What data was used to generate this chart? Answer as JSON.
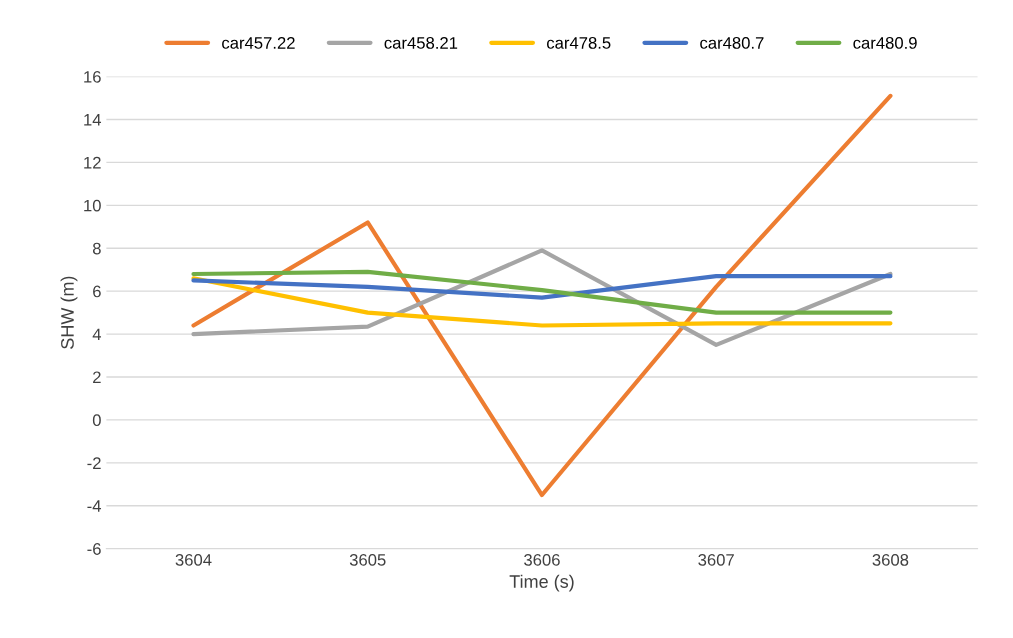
{
  "chart_data": {
    "type": "line",
    "xlabel": "Time (s)",
    "ylabel": "SHW (m)",
    "categories": [
      "3604",
      "3605",
      "3606",
      "3607",
      "3608"
    ],
    "series": [
      {
        "name": "car457.22",
        "color": "#ed7d31",
        "values": [
          4.4,
          9.2,
          -3.5,
          6.2,
          15.1
        ]
      },
      {
        "name": "car458.21",
        "color": "#a5a5a5",
        "values": [
          4.0,
          4.35,
          7.9,
          3.5,
          6.8
        ]
      },
      {
        "name": "car478.5",
        "color": "#ffc000",
        "values": [
          6.6,
          5.0,
          4.4,
          4.5,
          4.5
        ]
      },
      {
        "name": "car480.7",
        "color": "#4472c4",
        "values": [
          6.5,
          6.2,
          5.7,
          6.7,
          6.7
        ]
      },
      {
        "name": "car480.9",
        "color": "#70ad47",
        "values": [
          6.8,
          6.9,
          6.05,
          5.0,
          5.0
        ]
      }
    ],
    "ylim": [
      -6,
      16
    ],
    "yticks": [
      -6,
      -4,
      -2,
      0,
      2,
      4,
      6,
      8,
      10,
      12,
      14,
      16
    ],
    "grid": "y",
    "legend": "top",
    "marker": "none",
    "line_style": "solid"
  }
}
